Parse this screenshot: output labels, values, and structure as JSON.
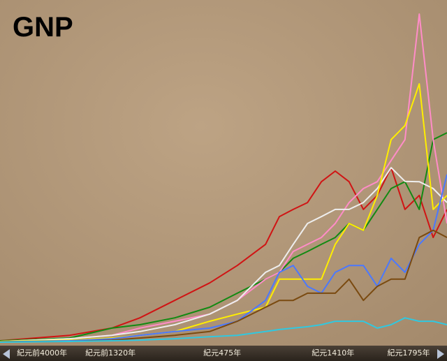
{
  "chart_data": {
    "type": "line",
    "title": "GNP",
    "x": [
      0,
      15.6,
      25,
      31.3,
      39.1,
      46.9,
      53.1,
      59.4,
      62.5,
      65.6,
      68.8,
      71.9,
      75,
      78.1,
      81.3,
      84.4,
      87.5,
      90.6,
      93.8,
      96.9,
      100
    ],
    "xlim": [
      0,
      100
    ],
    "ylim": [
      0,
      100
    ],
    "xticks": [
      {
        "value": 9.4,
        "label": "紀元前4000年"
      },
      {
        "value": 24.7,
        "label": "紀元前1320年"
      },
      {
        "value": 49.7,
        "label": "紀元475年"
      },
      {
        "value": 74.5,
        "label": "紀元1410年"
      },
      {
        "value": 91.4,
        "label": "紀元1795年"
      }
    ],
    "series": [
      {
        "color": "#d01414",
        "values": [
          0.4,
          2,
          4.1,
          7.1,
          12.2,
          17.3,
          22.4,
          28.6,
          36.7,
          38.8,
          40.8,
          46.9,
          50,
          46.9,
          38.8,
          42.9,
          51,
          38.8,
          42.9,
          30.6,
          38.8
        ]
      },
      {
        "color": "#128a12",
        "values": [
          0.4,
          1.2,
          4.1,
          5.1,
          7.1,
          10.2,
          14.3,
          18.4,
          20.4,
          24.5,
          26.5,
          28.6,
          30.6,
          34.7,
          32.7,
          38.8,
          44.9,
          46.9,
          38.8,
          59.2,
          61.2
        ]
      },
      {
        "color": "#ff8cc8",
        "values": [
          0.2,
          1,
          2,
          4.1,
          6.1,
          8.2,
          12.2,
          18.4,
          20.4,
          26.5,
          28.6,
          30.6,
          34.7,
          40.8,
          44.9,
          46.9,
          53.1,
          59.2,
          95.9,
          59.2,
          34.7
        ]
      },
      {
        "color": "#eeeeee",
        "values": [
          0.2,
          1,
          2,
          3.1,
          5.1,
          8.2,
          12.2,
          20.4,
          22.4,
          28.6,
          34.7,
          36.7,
          38.8,
          38.8,
          40.8,
          44.9,
          51,
          47,
          46.9,
          44.9,
          40.8
        ]
      },
      {
        "color": "#ffee00",
        "values": [
          0.2,
          0.6,
          1.2,
          2,
          3.1,
          6.1,
          8.2,
          10.2,
          18.4,
          18.4,
          18.4,
          18.4,
          28.6,
          34.7,
          32.7,
          42.9,
          59.2,
          63.3,
          75.5,
          38.8,
          42.9
        ]
      },
      {
        "color": "#4a78ff",
        "values": [
          0.1,
          0.4,
          1,
          2,
          3.1,
          4.1,
          6.1,
          12.2,
          20.4,
          22.4,
          16.3,
          14.3,
          20.4,
          22.4,
          22.4,
          16.3,
          24.5,
          20.4,
          28.6,
          32.7,
          49
        ]
      },
      {
        "color": "#7a4a10",
        "values": [
          0.1,
          0.2,
          0.6,
          1.2,
          2,
          3.1,
          6.1,
          10.2,
          12.2,
          12.2,
          14.3,
          14.3,
          14.3,
          18.4,
          12.2,
          16.3,
          18.4,
          18.4,
          30.6,
          32.7,
          30.6
        ]
      },
      {
        "color": "#30c8e0",
        "values": [
          0,
          0.2,
          0.4,
          0.6,
          1,
          1.6,
          2,
          3.1,
          3.7,
          4.1,
          4.5,
          5.1,
          6.1,
          6.1,
          6.1,
          4.1,
          5.1,
          7.1,
          6.1,
          6.1,
          5.1
        ]
      }
    ]
  }
}
